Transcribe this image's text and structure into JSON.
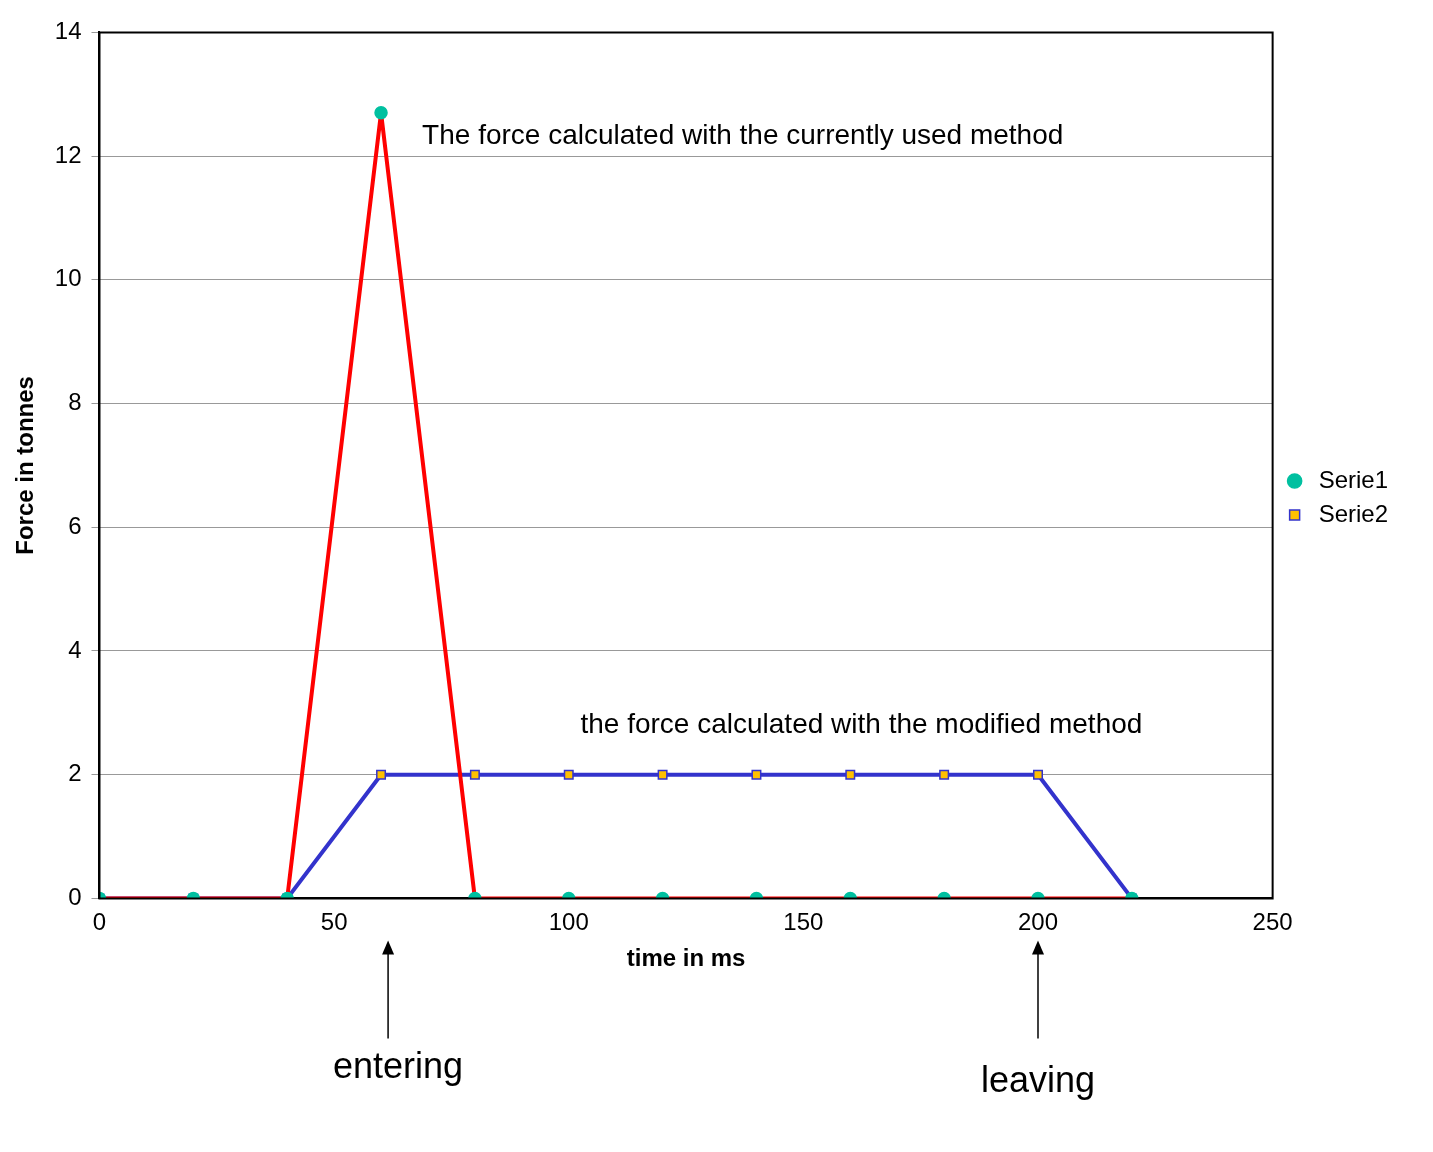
{
  "chart_data": {
    "type": "line",
    "xlabel": "time in ms",
    "ylabel": "Force in tonnes",
    "x": [
      0,
      20,
      40,
      60,
      80,
      100,
      120,
      140,
      160,
      180,
      200,
      220
    ],
    "series": [
      {
        "name": "Serie1",
        "color": "#ff0000",
        "marker": "circle",
        "values": [
          0,
          0,
          0,
          12.7,
          0,
          0,
          0,
          0,
          0,
          0,
          0,
          0
        ]
      },
      {
        "name": "Serie2",
        "color": "#3333cc",
        "marker": "square",
        "values": [
          0,
          0,
          0,
          2,
          2,
          2,
          2,
          2,
          2,
          2,
          2,
          0
        ]
      }
    ],
    "xlim": [
      0,
      250
    ],
    "xticks": [
      0,
      50,
      100,
      150,
      200,
      250
    ],
    "ylim": [
      0,
      14
    ],
    "yticks": [
      0,
      2,
      4,
      6,
      8,
      10,
      12,
      14
    ],
    "grid": "y",
    "legend": "right",
    "line_style": "solid",
    "annotations": [
      "The force calculated with the currently used method",
      "the force calculated with the modified method",
      "entering",
      "leaving"
    ]
  }
}
